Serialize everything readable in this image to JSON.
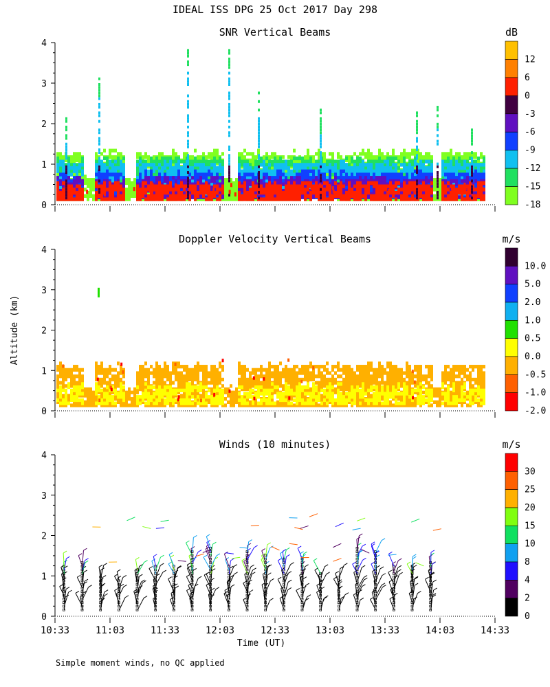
{
  "header": {
    "title": "IDEAL ISS DPG  25 Oct 2017 Day 298"
  },
  "footnote": "Simple moment winds, no QC applied",
  "colors": {
    "snr": [
      "#80ff20",
      "#20e060",
      "#10c0f0",
      "#1040ff",
      "#6010c0",
      "#400040",
      "#ff2000",
      "#ff8000",
      "#ffc000"
    ],
    "doppler": [
      "#ff0000",
      "#ff6000",
      "#ffb000",
      "#ffff00",
      "#20e000",
      "#10b0f0",
      "#1040ff",
      "#6010c0",
      "#300030"
    ],
    "winds": [
      "#000000",
      "#500060",
      "#2010ff",
      "#10a0f0",
      "#10e060",
      "#80ff10",
      "#ffb000",
      "#ff6000",
      "#ff0000"
    ]
  },
  "chart_data": [
    {
      "type": "heatmap",
      "title": "SNR Vertical Beams",
      "ylabel": "",
      "xlabel": "",
      "ylim": [
        0,
        4
      ],
      "yticks": [
        "0",
        "1",
        "2",
        "3",
        "4"
      ],
      "colorbar": {
        "unit": "dB",
        "labels": [
          "12",
          "6",
          "0",
          "-3",
          "-6",
          "-9",
          "-12",
          "-15",
          "-18"
        ]
      },
      "layers": [
        {
          "level": -18,
          "from_alt": 0.1,
          "to_alt": 1.25
        },
        {
          "level": -15,
          "from_alt": 0.15,
          "to_alt": 1.1
        },
        {
          "level": -12,
          "from_alt": 0.15,
          "to_alt": 1.0
        },
        {
          "level": -9,
          "from_alt": 0.15,
          "to_alt": 0.75
        },
        {
          "level": -6,
          "from_alt": 0.15,
          "to_alt": 0.6
        },
        {
          "level": 0,
          "from_alt": 0.1,
          "to_alt": 0.5
        }
      ]
    },
    {
      "type": "heatmap",
      "title": "Doppler Velocity Vertical Beams",
      "ylabel": "Altitude (km)",
      "xlabel": "",
      "ylim": [
        0,
        4
      ],
      "yticks": [
        "0",
        "1",
        "2",
        "3",
        "4"
      ],
      "colorbar": {
        "unit": "m/s",
        "labels": [
          "10.0",
          "5.0",
          "2.0",
          "1.0",
          "0.5",
          "0.0",
          "-0.5",
          "-1.0",
          "-2.0"
        ]
      },
      "layers": [
        {
          "level": -0.5,
          "from_alt": 0.1,
          "to_alt": 1.1
        },
        {
          "level": 0.0,
          "from_alt": 0.15,
          "to_alt": 0.6
        }
      ]
    },
    {
      "type": "scatter",
      "title": "Winds (10 minutes)",
      "ylabel": "",
      "xlabel": "Time (UT)",
      "ylim": [
        0,
        4
      ],
      "yticks": [
        "0",
        "1",
        "2",
        "3",
        "4"
      ],
      "xticks": [
        "10:33",
        "11:03",
        "11:33",
        "12:03",
        "12:33",
        "13:03",
        "13:33",
        "14:03",
        "14:33"
      ],
      "colorbar": {
        "unit": "m/s",
        "labels": [
          "30",
          "25",
          "20",
          "15",
          "10",
          "8",
          "4",
          "2",
          "0"
        ]
      },
      "profile_times_min": [
        5,
        15,
        25,
        35,
        45,
        55,
        65,
        75,
        85,
        95,
        105,
        115,
        125,
        135,
        145,
        155,
        165,
        175,
        185,
        195,
        205
      ]
    }
  ]
}
